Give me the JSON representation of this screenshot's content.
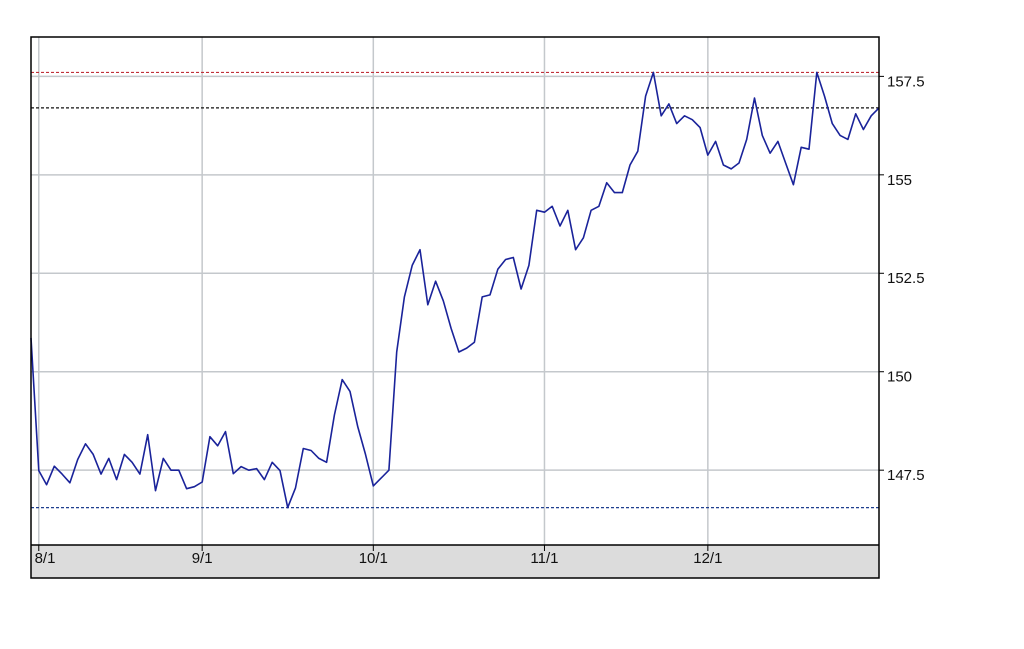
{
  "chart_data": {
    "type": "line",
    "categories": [
      null,
      "8/1",
      null,
      null,
      null,
      null,
      null,
      null,
      null,
      null,
      null,
      null,
      null,
      null,
      null,
      null,
      null,
      null,
      null,
      null,
      null,
      null,
      "9/1",
      null,
      null,
      null,
      null,
      null,
      null,
      null,
      null,
      null,
      null,
      null,
      null,
      null,
      null,
      null,
      null,
      null,
      null,
      null,
      null,
      null,
      "10/1",
      null,
      null,
      null,
      null,
      null,
      null,
      null,
      null,
      null,
      null,
      null,
      null,
      null,
      null,
      null,
      null,
      null,
      null,
      null,
      null,
      null,
      "11/1",
      null,
      null,
      null,
      null,
      null,
      null,
      null,
      null,
      null,
      null,
      null,
      null,
      null,
      null,
      null,
      null,
      null,
      null,
      null,
      null,
      "12/1",
      null,
      null,
      null,
      null,
      null,
      null,
      null,
      null,
      null,
      null,
      null,
      null,
      null,
      null,
      null,
      null,
      null,
      null,
      null,
      null,
      null,
      null
    ],
    "values": [
      150.86,
      147.49,
      147.13,
      147.6,
      147.4,
      147.18,
      147.77,
      148.17,
      147.9,
      147.4,
      147.8,
      147.26,
      147.9,
      147.7,
      147.4,
      148.4,
      146.98,
      147.8,
      147.5,
      147.5,
      147.03,
      147.08,
      147.2,
      148.35,
      148.12,
      148.48,
      147.41,
      147.59,
      147.5,
      147.54,
      147.26,
      147.7,
      147.49,
      146.55,
      147.05,
      148.05,
      148.0,
      147.8,
      147.7,
      148.9,
      149.8,
      149.5,
      148.6,
      147.9,
      147.1,
      147.3,
      147.5,
      150.5,
      151.9,
      152.7,
      153.1,
      151.7,
      152.3,
      151.8,
      151.1,
      150.5,
      150.6,
      150.75,
      151.9,
      151.95,
      152.6,
      152.85,
      152.9,
      152.1,
      152.7,
      154.1,
      154.05,
      154.2,
      153.7,
      154.1,
      153.1,
      153.4,
      154.1,
      154.2,
      154.8,
      154.55,
      154.55,
      155.25,
      155.6,
      157.0,
      157.6,
      156.5,
      156.8,
      156.3,
      156.5,
      156.4,
      156.2,
      155.5,
      155.85,
      155.25,
      155.15,
      155.3,
      155.9,
      156.95,
      156.0,
      155.55,
      155.85,
      155.3,
      154.75,
      155.7,
      155.65,
      157.6,
      157.0,
      156.3,
      156.0,
      155.9,
      156.55,
      156.15,
      156.5,
      156.7
    ],
    "color": "#1a239a",
    "ylim": [
      145.6,
      158.5
    ],
    "yticks": [
      147.5,
      150,
      152.5,
      155,
      157.5
    ],
    "grid": true,
    "reference_lines": [
      {
        "value": 157.6,
        "color": "#c0303a"
      },
      {
        "value": 156.7,
        "color": "#111111"
      },
      {
        "value": 146.55,
        "color": "#1f3f8f"
      }
    ]
  }
}
